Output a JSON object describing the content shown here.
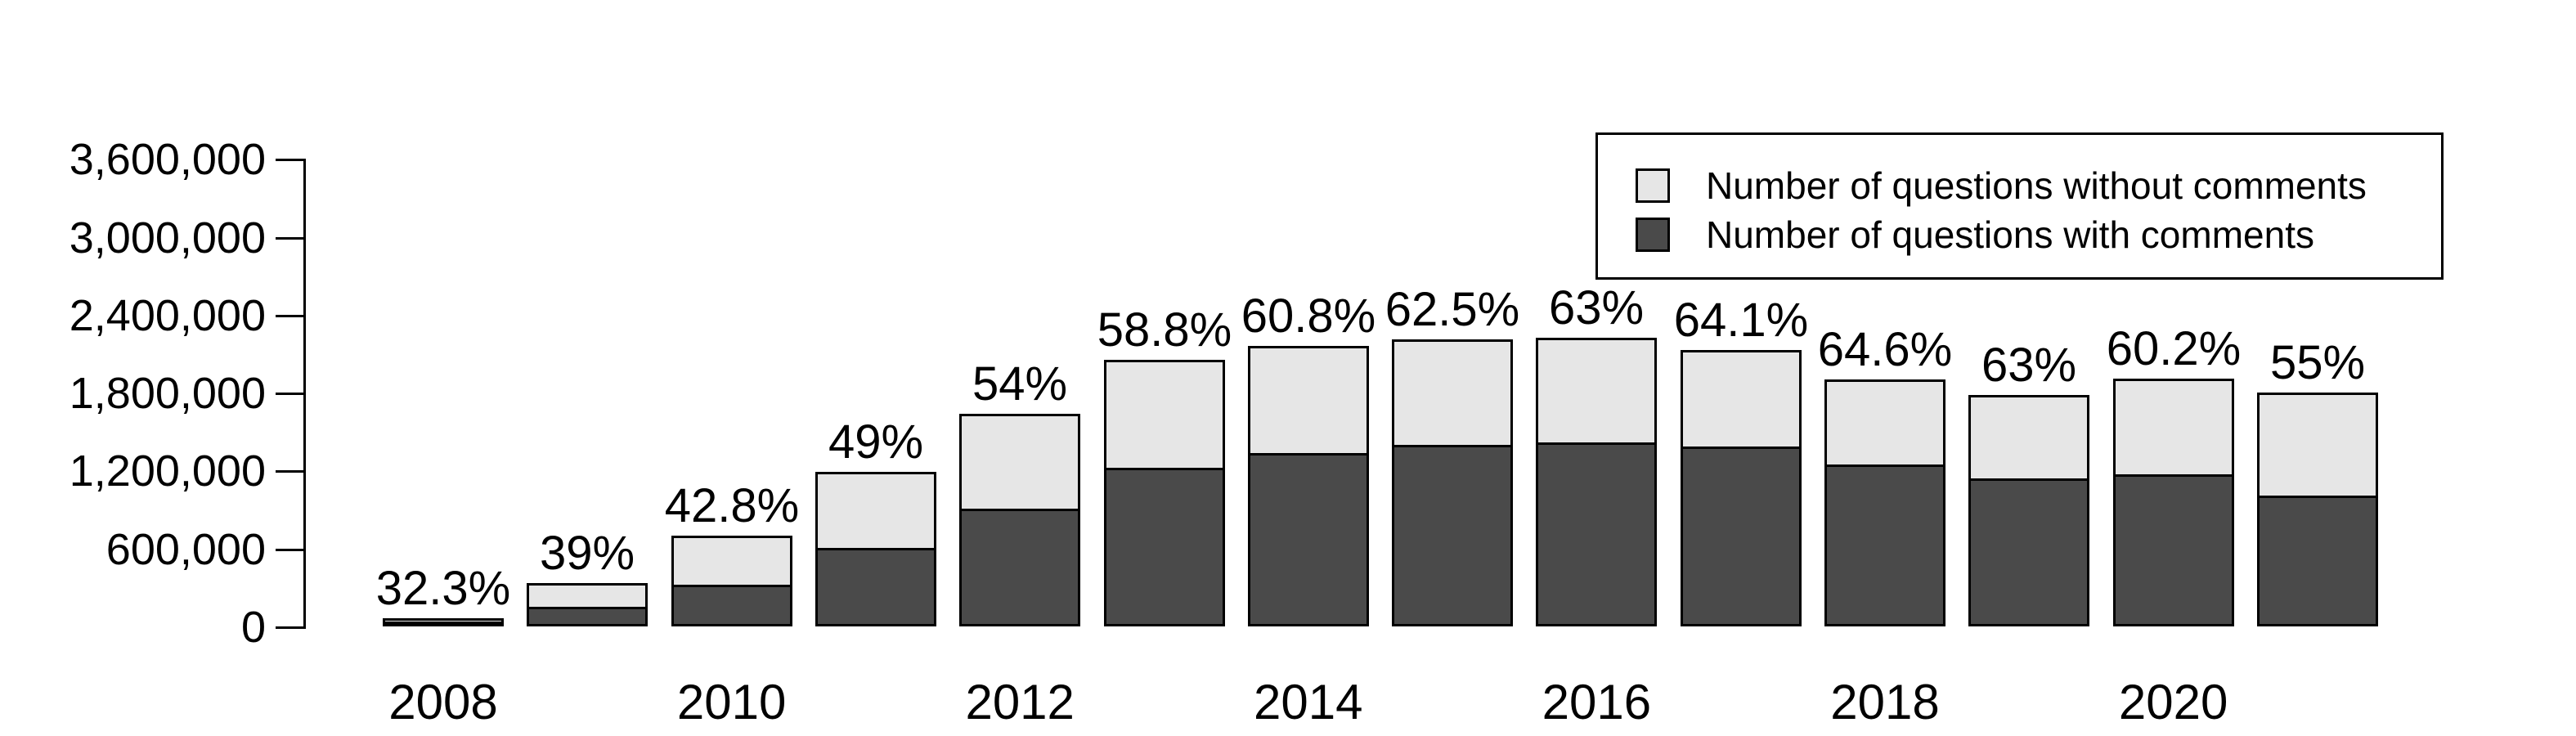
{
  "chart_data": {
    "type": "bar",
    "stacked": true,
    "categories": [
      2008,
      2009,
      2010,
      2011,
      2012,
      2013,
      2014,
      2015,
      2016,
      2017,
      2018,
      2019,
      2020,
      2021
    ],
    "series": [
      {
        "name": "Number of questions with comments",
        "color": "#4a4a4a",
        "values": [
          19000,
          131000,
          300000,
          583000,
          886000,
          1205000,
          1313000,
          1381000,
          1399000,
          1365000,
          1227000,
          1121000,
          1150000,
          990000
        ]
      },
      {
        "name": "Number of questions without comments",
        "color": "#e6e6e6",
        "values": [
          41000,
          204000,
          400000,
          607000,
          754000,
          845000,
          847000,
          829000,
          821000,
          765000,
          673000,
          659000,
          760000,
          810000
        ]
      }
    ],
    "totals": [
      60000,
      335000,
      700000,
      1190000,
      1640000,
      2050000,
      2160000,
      2210000,
      2220000,
      2130000,
      1900000,
      1780000,
      1910000,
      1800000
    ],
    "bar_labels": [
      "32.3%",
      "39%",
      "42.8%",
      "49%",
      "54%",
      "58.8%",
      "60.8%",
      "62.5%",
      "63%",
      "64.1%",
      "64.6%",
      "63%",
      "60.2%",
      "55%"
    ],
    "bar_label_meaning": "share of questions with comments",
    "yticks": [
      0,
      600000,
      1200000,
      1800000,
      2400000,
      3000000,
      3600000
    ],
    "ytick_labels": [
      "0",
      "600,000",
      "1,200,000",
      "1,800,000",
      "2,400,000",
      "3,000,000",
      "3,600,000"
    ],
    "xtick_labels": [
      "2008",
      "2010",
      "2012",
      "2014",
      "2016",
      "2018",
      "2020"
    ],
    "xtick_years": [
      2008,
      2010,
      2012,
      2014,
      2016,
      2018,
      2020
    ],
    "ylim": [
      0,
      3600000
    ],
    "grid": false,
    "title": "",
    "xlabel": "",
    "ylabel": "",
    "legend_position": "top-right"
  },
  "legend": {
    "items": [
      {
        "label": "Number of questions without comments",
        "color": "#e6e6e6"
      },
      {
        "label": "Number of questions with comments",
        "color": "#4a4a4a"
      }
    ]
  },
  "colors": {
    "background": "#ffffff",
    "axis": "#000000",
    "text": "#000000",
    "bar_border": "#000000",
    "with_comments_fill": "#4a4a4a",
    "without_comments_fill": "#e6e6e6"
  }
}
